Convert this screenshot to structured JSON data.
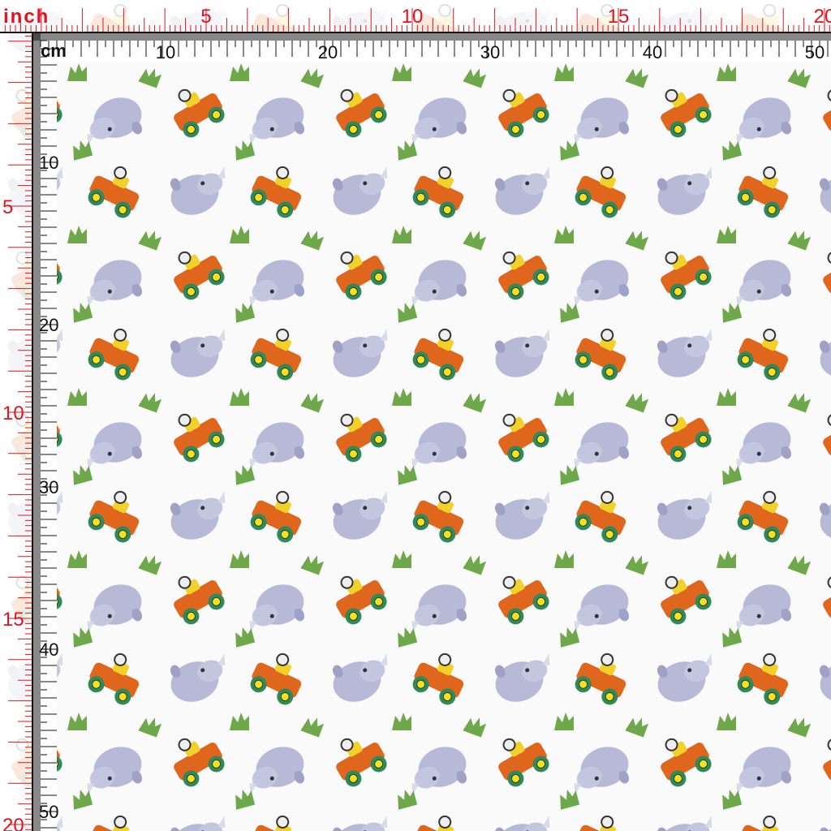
{
  "rulers": {
    "top": {
      "inch_label": "inch",
      "inch_numbers": [
        5,
        10,
        15,
        20
      ],
      "cm_label": "cm",
      "cm_numbers": [
        10,
        20,
        30,
        40,
        50
      ]
    },
    "left": {
      "inch_numbers": [
        5,
        10,
        15,
        20
      ],
      "cm_numbers": [
        10,
        20,
        30,
        40,
        50
      ]
    }
  }
}
